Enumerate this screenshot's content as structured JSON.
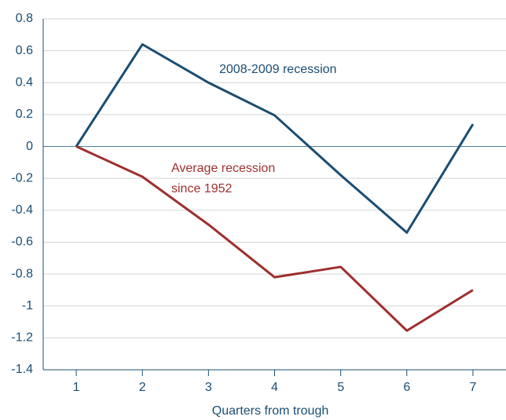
{
  "chart_data": {
    "type": "line",
    "x_label": "Quarters from trough",
    "x": [
      1,
      2,
      3,
      4,
      5,
      6,
      7
    ],
    "series": [
      {
        "name": "2008-2009 recession",
        "color": "#1b4d72",
        "values": [
          0,
          0.64,
          0.4,
          0.195,
          -0.18,
          -0.54,
          0.14
        ]
      },
      {
        "name": "Average recession since 1952",
        "color": "#9e2f2e",
        "values": [
          0,
          -0.19,
          -0.49,
          -0.82,
          -0.755,
          -1.155,
          -0.9
        ]
      }
    ],
    "annotations": [
      {
        "lines": [
          "2008-2009 recession"
        ]
      },
      {
        "lines": [
          "Average recession",
          "since 1952"
        ]
      }
    ],
    "xlim": [
      0.5,
      7.5
    ],
    "xticks": [
      1,
      2,
      3,
      4,
      5,
      6,
      7
    ],
    "ylim": [
      -1.4,
      0.8
    ],
    "yticks": [
      0.8,
      0.6,
      0.4,
      0.2,
      0,
      -0.2,
      -0.4,
      -0.6,
      -0.8,
      -1,
      -1.2,
      -1.4
    ],
    "grid": true
  }
}
